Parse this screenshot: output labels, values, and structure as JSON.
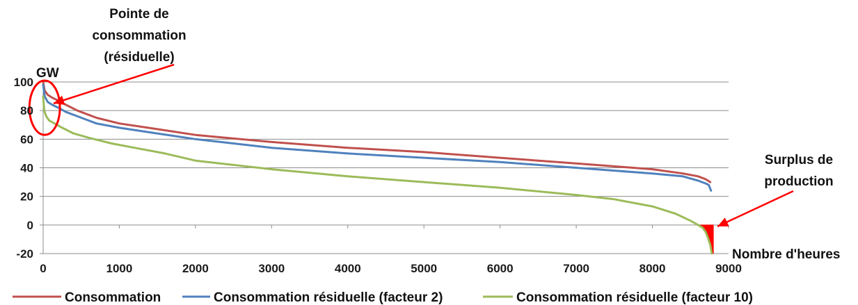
{
  "chart_data": {
    "type": "line",
    "title": "",
    "xlabel": "Nombre d'heures",
    "ylabel": "GW",
    "xlim": [
      0,
      9000
    ],
    "ylim": [
      -20,
      100
    ],
    "x_ticks": [
      0,
      1000,
      2000,
      3000,
      4000,
      5000,
      6000,
      7000,
      8000,
      9000
    ],
    "y_ticks": [
      -20,
      0,
      20,
      40,
      60,
      80,
      100
    ],
    "grid": "horizontal",
    "legend_position": "bottom",
    "series": [
      {
        "name": "Consommation",
        "color": "#c0504d",
        "x": [
          0,
          20,
          60,
          120,
          200,
          300,
          450,
          700,
          1000,
          1500,
          2000,
          3000,
          4000,
          5000,
          6000,
          7000,
          7500,
          8000,
          8400,
          8600,
          8700,
          8760
        ],
        "y": [
          100,
          94,
          91,
          89,
          87,
          84,
          80,
          75,
          71,
          67,
          63,
          58,
          54,
          51,
          47,
          43,
          41,
          39,
          36,
          34,
          32,
          30
        ]
      },
      {
        "name": "Consommation résiduelle (facteur 2)",
        "color": "#4f81bd",
        "x": [
          0,
          20,
          60,
          120,
          200,
          300,
          450,
          700,
          1000,
          1500,
          2000,
          3000,
          4000,
          5000,
          6000,
          7000,
          7500,
          8000,
          8400,
          8600,
          8700,
          8740,
          8770
        ],
        "y": [
          98,
          90,
          86,
          84,
          82,
          79,
          76,
          71,
          68,
          64,
          60,
          54,
          50,
          47,
          44,
          40,
          38,
          36,
          34,
          31,
          29,
          28,
          24
        ]
      },
      {
        "name": "Consommation résiduelle (facteur 10)",
        "color": "#9bbb59",
        "x": [
          0,
          15,
          40,
          80,
          150,
          250,
          400,
          600,
          900,
          1200,
          1600,
          2000,
          3000,
          4000,
          5000,
          6000,
          7000,
          7500,
          8000,
          8300,
          8500,
          8600,
          8660,
          8700,
          8730,
          8760,
          8780
        ],
        "y": [
          90,
          80,
          76,
          73,
          71,
          68,
          64,
          61,
          57,
          54,
          50,
          45,
          39,
          34,
          30,
          26,
          21,
          18,
          13,
          8,
          3,
          0,
          -2,
          -5,
          -9,
          -14,
          -20
        ]
      }
    ],
    "annotations": [
      {
        "text_lines": [
          "Pointe de",
          "consommation",
          "(résiduelle)"
        ],
        "target_x": 100,
        "target_y": 85,
        "color": "#ff0000"
      },
      {
        "text_lines": [
          "Surplus de",
          "production"
        ],
        "target_x": 8800,
        "target_y": -1,
        "color": "#ff0000"
      }
    ],
    "highlight": {
      "peak_ellipse": {
        "cx": 20,
        "cy": 82,
        "rx": 200,
        "ry": 19,
        "color": "#ff0000"
      },
      "surplus_area": {
        "x_start": 8630,
        "x_end": 8800,
        "color": "#ff0000"
      }
    }
  }
}
